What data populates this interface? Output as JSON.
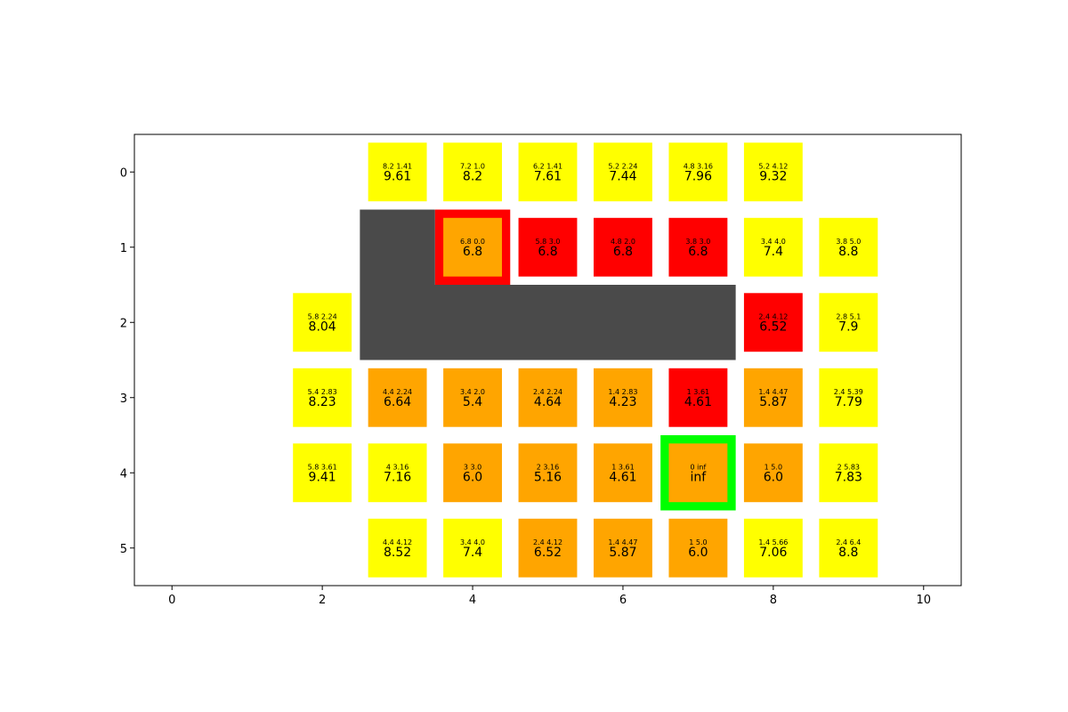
{
  "chart_data": {
    "type": "heatmap",
    "title": "",
    "xlabel": "",
    "ylabel": "",
    "xlim": [
      -0.5,
      10.5
    ],
    "ylim": [
      5.5,
      -0.5
    ],
    "y_inverted": true,
    "xticks": [
      "0",
      "2",
      "4",
      "6",
      "8",
      "10"
    ],
    "yticks": [
      "0",
      "1",
      "2",
      "3",
      "4",
      "5"
    ],
    "grid": false,
    "legend": "none",
    "colors": {
      "yellow": "#ffff00",
      "orange": "#ffa500",
      "red": "#ff0000",
      "obstacle": "#4a4a4a",
      "start_outline": "#ff0000",
      "goal_outline": "#00ff00"
    },
    "obstacles": [
      {
        "x0": 2.5,
        "x1": 3.5,
        "y0": 0.5,
        "y1": 1.5
      },
      {
        "x0": 2.5,
        "x1": 7.5,
        "y0": 1.5,
        "y1": 2.5
      }
    ],
    "cells": [
      {
        "row": 0,
        "col": 3,
        "g": "8.2",
        "h": "1.41",
        "f": "9.61",
        "color": "yellow"
      },
      {
        "row": 0,
        "col": 4,
        "g": "7.2",
        "h": "1.0",
        "f": "8.2",
        "color": "yellow"
      },
      {
        "row": 0,
        "col": 5,
        "g": "6.2",
        "h": "1.41",
        "f": "7.61",
        "color": "yellow"
      },
      {
        "row": 0,
        "col": 6,
        "g": "5.2",
        "h": "2.24",
        "f": "7.44",
        "color": "yellow"
      },
      {
        "row": 0,
        "col": 7,
        "g": "4.8",
        "h": "3.16",
        "f": "7.96",
        "color": "yellow"
      },
      {
        "row": 0,
        "col": 8,
        "g": "5.2",
        "h": "4.12",
        "f": "9.32",
        "color": "yellow"
      },
      {
        "row": 1,
        "col": 4,
        "g": "6.8",
        "h": "0.0",
        "f": "6.8",
        "color": "orange",
        "outline": "start_outline"
      },
      {
        "row": 1,
        "col": 5,
        "g": "5.8",
        "h": "3.0",
        "f": "6.8",
        "color": "red"
      },
      {
        "row": 1,
        "col": 6,
        "g": "4.8",
        "h": "2.0",
        "f": "6.8",
        "color": "red"
      },
      {
        "row": 1,
        "col": 7,
        "g": "3.8",
        "h": "3.0",
        "f": "6.8",
        "color": "red"
      },
      {
        "row": 1,
        "col": 8,
        "g": "3.4",
        "h": "4.0",
        "f": "7.4",
        "color": "yellow"
      },
      {
        "row": 1,
        "col": 9,
        "g": "3.8",
        "h": "5.0",
        "f": "8.8",
        "color": "yellow"
      },
      {
        "row": 2,
        "col": 2,
        "g": "5.8",
        "h": "2.24",
        "f": "8.04",
        "color": "yellow"
      },
      {
        "row": 2,
        "col": 8,
        "g": "2.4",
        "h": "4.12",
        "f": "6.52",
        "color": "red"
      },
      {
        "row": 2,
        "col": 9,
        "g": "2.8",
        "h": "5.1",
        "f": "7.9",
        "color": "yellow"
      },
      {
        "row": 3,
        "col": 2,
        "g": "5.4",
        "h": "2.83",
        "f": "8.23",
        "color": "yellow"
      },
      {
        "row": 3,
        "col": 3,
        "g": "4.4",
        "h": "2.24",
        "f": "6.64",
        "color": "orange"
      },
      {
        "row": 3,
        "col": 4,
        "g": "3.4",
        "h": "2.0",
        "f": "5.4",
        "color": "orange"
      },
      {
        "row": 3,
        "col": 5,
        "g": "2.4",
        "h": "2.24",
        "f": "4.64",
        "color": "orange"
      },
      {
        "row": 3,
        "col": 6,
        "g": "1.4",
        "h": "2.83",
        "f": "4.23",
        "color": "orange"
      },
      {
        "row": 3,
        "col": 7,
        "g": "1",
        "h": "3.61",
        "f": "4.61",
        "color": "red"
      },
      {
        "row": 3,
        "col": 8,
        "g": "1.4",
        "h": "4.47",
        "f": "5.87",
        "color": "orange"
      },
      {
        "row": 3,
        "col": 9,
        "g": "2.4",
        "h": "5.39",
        "f": "7.79",
        "color": "yellow"
      },
      {
        "row": 4,
        "col": 2,
        "g": "5.8",
        "h": "3.61",
        "f": "9.41",
        "color": "yellow"
      },
      {
        "row": 4,
        "col": 3,
        "g": "4",
        "h": "3.16",
        "f": "7.16",
        "color": "yellow"
      },
      {
        "row": 4,
        "col": 4,
        "g": "3",
        "h": "3.0",
        "f": "6.0",
        "color": "orange"
      },
      {
        "row": 4,
        "col": 5,
        "g": "2",
        "h": "3.16",
        "f": "5.16",
        "color": "orange"
      },
      {
        "row": 4,
        "col": 6,
        "g": "1",
        "h": "3.61",
        "f": "4.61",
        "color": "orange"
      },
      {
        "row": 4,
        "col": 7,
        "g": "0",
        "h": "inf",
        "f": "inf",
        "color": "orange",
        "outline": "goal_outline"
      },
      {
        "row": 4,
        "col": 8,
        "g": "1",
        "h": "5.0",
        "f": "6.0",
        "color": "orange"
      },
      {
        "row": 4,
        "col": 9,
        "g": "2",
        "h": "5.83",
        "f": "7.83",
        "color": "yellow"
      },
      {
        "row": 5,
        "col": 3,
        "g": "4.4",
        "h": "4.12",
        "f": "8.52",
        "color": "yellow"
      },
      {
        "row": 5,
        "col": 4,
        "g": "3.4",
        "h": "4.0",
        "f": "7.4",
        "color": "yellow"
      },
      {
        "row": 5,
        "col": 5,
        "g": "2.4",
        "h": "4.12",
        "f": "6.52",
        "color": "orange"
      },
      {
        "row": 5,
        "col": 6,
        "g": "1.4",
        "h": "4.47",
        "f": "5.87",
        "color": "orange"
      },
      {
        "row": 5,
        "col": 7,
        "g": "1",
        "h": "5.0",
        "f": "6.0",
        "color": "orange"
      },
      {
        "row": 5,
        "col": 8,
        "g": "1.4",
        "h": "5.66",
        "f": "7.06",
        "color": "yellow"
      },
      {
        "row": 5,
        "col": 9,
        "g": "2.4",
        "h": "6.4",
        "f": "8.8",
        "color": "yellow"
      }
    ]
  }
}
